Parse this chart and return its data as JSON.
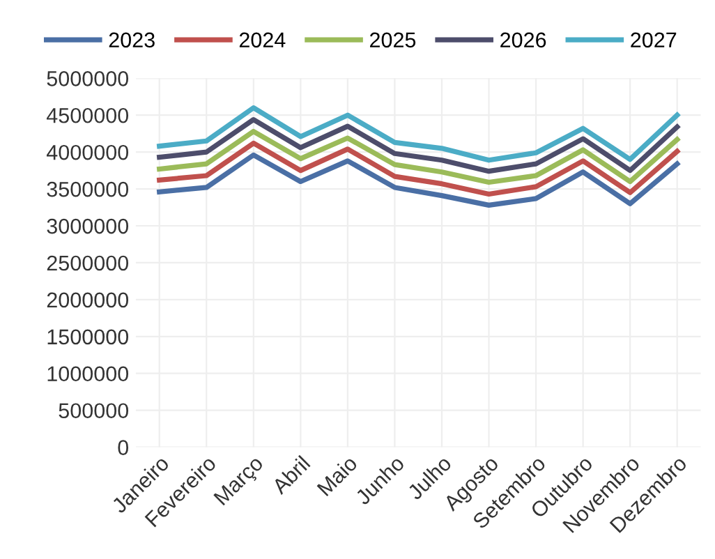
{
  "chart_data": {
    "type": "line",
    "categories": [
      "Janeiro",
      "Fevereiro",
      "Março",
      "Abril",
      "Maio",
      "Junho",
      "Julho",
      "Agosto",
      "Setembro",
      "Outubro",
      "Novembro",
      "Dezembro"
    ],
    "series": [
      {
        "name": "2023",
        "color": "#4a6fa5",
        "values": [
          3460000,
          3520000,
          3960000,
          3600000,
          3880000,
          3520000,
          3410000,
          3280000,
          3370000,
          3730000,
          3300000,
          3840000
        ]
      },
      {
        "name": "2024",
        "color": "#c0504d",
        "values": [
          3620000,
          3680000,
          4120000,
          3750000,
          4040000,
          3670000,
          3570000,
          3430000,
          3530000,
          3880000,
          3450000,
          4010000
        ]
      },
      {
        "name": "2025",
        "color": "#9bbb59",
        "values": [
          3770000,
          3840000,
          4280000,
          3910000,
          4190000,
          3830000,
          3730000,
          3590000,
          3680000,
          4030000,
          3600000,
          4170000
        ]
      },
      {
        "name": "2026",
        "color": "#4d4d6b",
        "values": [
          3930000,
          4000000,
          4440000,
          4060000,
          4350000,
          3980000,
          3890000,
          3740000,
          3840000,
          4180000,
          3750000,
          4340000
        ]
      },
      {
        "name": "2027",
        "color": "#4bacc6",
        "values": [
          4080000,
          4150000,
          4600000,
          4210000,
          4500000,
          4130000,
          4050000,
          3890000,
          3990000,
          4320000,
          3900000,
          4500000
        ]
      }
    ],
    "ylim": [
      0,
      5000000
    ],
    "yticks": [
      0,
      500000,
      1000000,
      1500000,
      2000000,
      2500000,
      3000000,
      3500000,
      4000000,
      4500000,
      5000000
    ],
    "legend": "top",
    "grid": true,
    "marker": "none",
    "line_style": "solid"
  }
}
